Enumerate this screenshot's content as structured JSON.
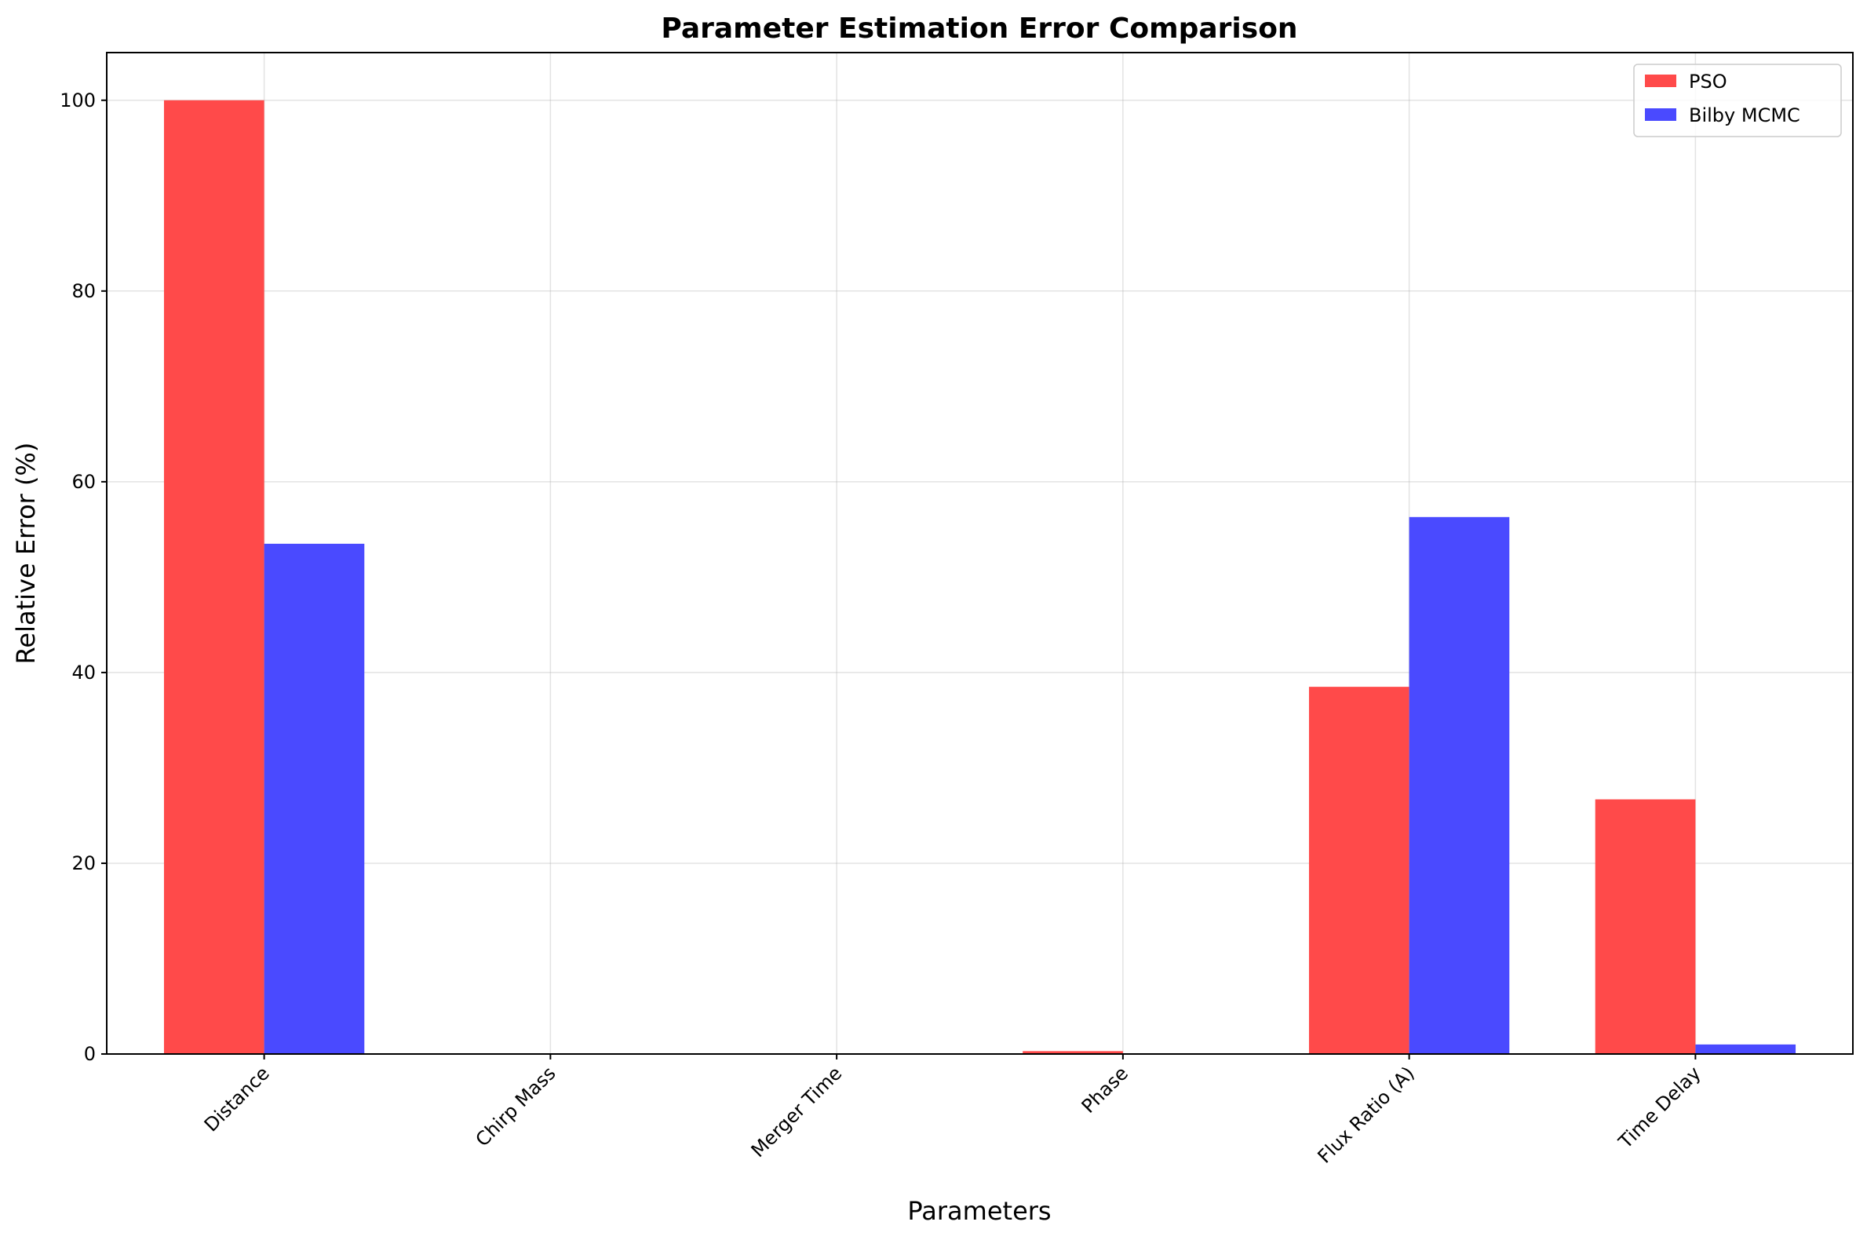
{
  "chart_data": {
    "type": "bar",
    "title": "Parameter Estimation Error Comparison",
    "xlabel": "Parameters",
    "ylabel": "Relative Error (%)",
    "categories": [
      "Distance",
      "Chirp Mass",
      "Merger Time",
      "Phase",
      "Flux Ratio (A)",
      "Time Delay"
    ],
    "series": [
      {
        "name": "PSO",
        "color": "#ff4a4a",
        "values": [
          100,
          0,
          0,
          0.3,
          38.5,
          26.7
        ]
      },
      {
        "name": "Bilby MCMC",
        "color": "#4a4aff",
        "values": [
          53.5,
          0,
          0,
          0,
          56.3,
          1.0
        ]
      }
    ],
    "ylim": [
      0,
      105
    ],
    "yticks": [
      "0",
      "20",
      "40",
      "60",
      "80",
      "100"
    ],
    "grid": true,
    "legend_position": "top-right"
  }
}
